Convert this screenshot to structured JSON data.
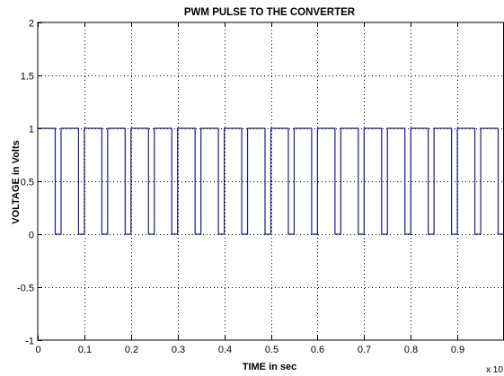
{
  "chart_data": {
    "type": "line",
    "title": "PWM PULSE TO THE CONVERTER",
    "xlabel": "TIME in sec",
    "ylabel": "VOLTAGE in Volts",
    "x_multiplier_label": "x 10",
    "xlim": [
      0,
      1
    ],
    "ylim": [
      -1,
      2
    ],
    "x_ticks": [
      0,
      0.1,
      0.2,
      0.3,
      0.4,
      0.5,
      0.6,
      0.7,
      0.8,
      0.9
    ],
    "x_tick_labels": [
      "0",
      "0.1",
      "0.2",
      "0.3",
      "0.4",
      "0.5",
      "0.6",
      "0.7",
      "0.8",
      "0.9"
    ],
    "y_ticks": [
      -1,
      -0.5,
      0,
      0.5,
      1,
      1.5,
      2
    ],
    "y_tick_labels": [
      "-1",
      "-0.5",
      "0",
      "0.5",
      "1",
      "1.5",
      "2"
    ],
    "grid": true,
    "series": [
      {
        "color": "#1b1b8f",
        "period": 0.05,
        "duty_cycle": 0.75,
        "high": 1,
        "low": 0,
        "rising_edges": [
          0,
          0.05,
          0.1,
          0.15,
          0.2,
          0.25,
          0.3,
          0.35,
          0.4,
          0.45,
          0.5,
          0.55,
          0.6,
          0.65,
          0.7,
          0.75,
          0.8,
          0.85,
          0.9,
          0.95
        ],
        "falling_edges": [
          0.0375,
          0.0875,
          0.1375,
          0.1875,
          0.2375,
          0.2875,
          0.3375,
          0.3875,
          0.4375,
          0.4875,
          0.5375,
          0.5875,
          0.6375,
          0.6875,
          0.7375,
          0.7875,
          0.8375,
          0.8875,
          0.9375,
          0.9875
        ]
      }
    ]
  }
}
